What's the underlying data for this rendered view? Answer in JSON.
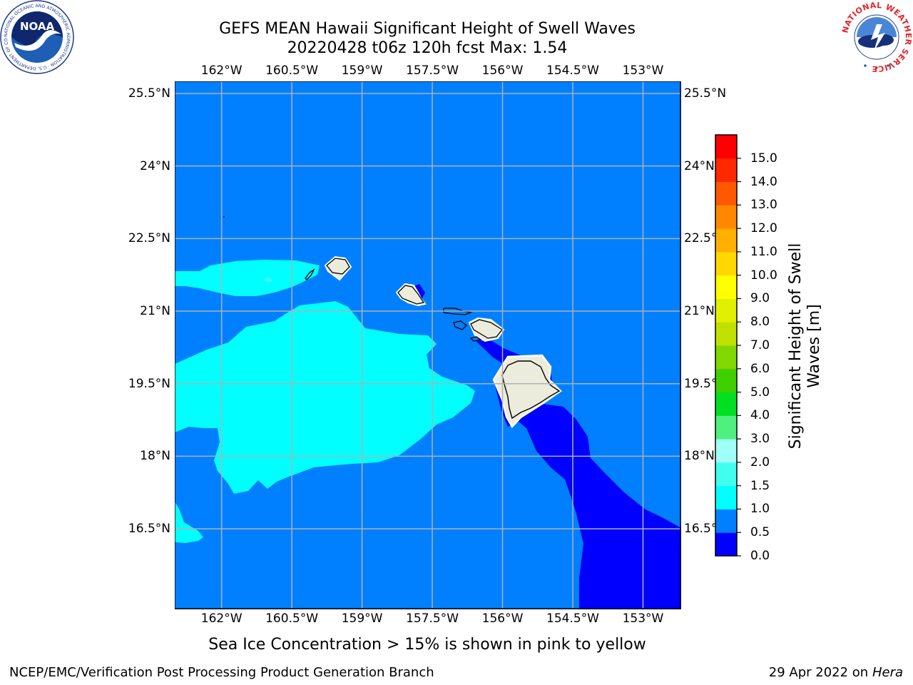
{
  "title": {
    "line1": "GEFS MEAN Hawaii Significant Height of Swell Waves",
    "line2": "20220428 t06z 120h fcst   Max: 1.54"
  },
  "axes": {
    "lon_ticks": [
      "162°W",
      "160.5°W",
      "159°W",
      "157.5°W",
      "156°W",
      "154.5°W",
      "153°W"
    ],
    "lat_ticks": [
      "25.5°N",
      "24°N",
      "22.5°N",
      "21°N",
      "19.5°N",
      "18°N",
      "16.5°N"
    ],
    "lon_values": [
      -162,
      -160.5,
      -159,
      -157.5,
      -156,
      -154.5,
      -153
    ],
    "lat_values": [
      25.5,
      24,
      22.5,
      21,
      19.5,
      18,
      16.5
    ],
    "lon_range": [
      -163,
      -152.2
    ],
    "lat_range": [
      14.85,
      25.75
    ],
    "grid": true
  },
  "map": {
    "layers": [
      {
        "name": "0.5-1.0 m",
        "color": "#0080ff"
      },
      {
        "name": "1.0-1.5 m",
        "color": "#00ffff"
      },
      {
        "name": "1.5-2.0 m",
        "color": "#40ffef"
      },
      {
        "name": "0.0-0.5 m",
        "color": "#0000ff"
      },
      {
        "name": "land",
        "color": "#ececdc"
      }
    ]
  },
  "colorbar": {
    "label_line1": "Significant Height of Swell",
    "label_line2": "Waves [m]",
    "ticks": [
      "0.0",
      "0.5",
      "1.0",
      "1.5",
      "2.0",
      "3.0",
      "4.0",
      "5.0",
      "6.0",
      "7.0",
      "8.0",
      "9.0",
      "10.0",
      "11.0",
      "12.0",
      "13.0",
      "14.0",
      "15.0"
    ],
    "colors": [
      "#0000ff",
      "#0080ff",
      "#00ffff",
      "#40ffef",
      "#a0fff7",
      "#50f080",
      "#00e020",
      "#40d000",
      "#80d800",
      "#c0e000",
      "#e0f000",
      "#ffff00",
      "#ffd800",
      "#ffb000",
      "#ff8800",
      "#ff5800",
      "#ff2800",
      "#ff0000"
    ]
  },
  "caption": "Sea Ice Concentration > 15% is shown in pink to yellow",
  "footer": {
    "left": "NCEP/EMC/Verification Post Processing Product Generation Branch",
    "right_prefix": "29 Apr 2022 on ",
    "right_italic": "Hera"
  },
  "logos": {
    "left": {
      "text": "NOAA",
      "ring_text": "NATIONAL OCEANIC AND ATMOSPHERIC ADMINISTRATION · U.S. DEPARTMENT OF COMMERCE"
    },
    "right": {
      "ring_text": "NATIONAL WEATHER SERVICE"
    }
  }
}
